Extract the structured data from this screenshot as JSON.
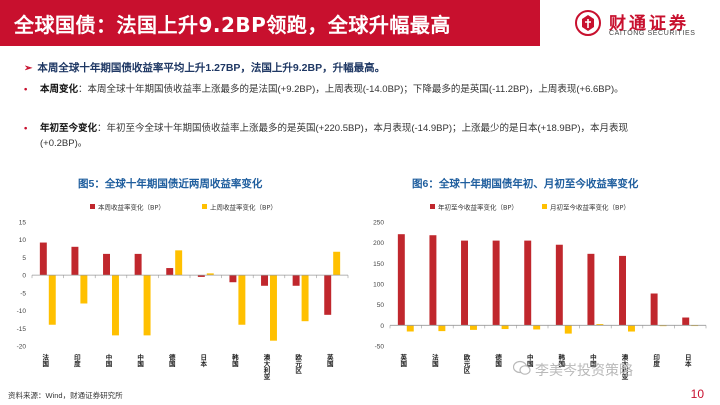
{
  "header": {
    "title": "全球国债：法国上升9.2BP领跑，全球升幅最高",
    "logo_cn": "财通证券",
    "logo_en": "CAITONG SECURITIES",
    "brand_color": "#c8102e"
  },
  "summary": {
    "arrow_icon": "right-arrow-icon",
    "text": "本周全球十年期国债收益率平均上升1.27BP，法国上升9.2BP，升幅最高。"
  },
  "bullets": [
    {
      "label": "本周变化",
      "text": "：本周全球十年期国债收益率上涨最多的是法国(+9.2BP)，上周表现(-14.0BP)；下降最多的是英国(-11.2BP)，上周表现(+6.6BP)。"
    },
    {
      "label": "年初至今变化",
      "text": "：年初至今全球十年期国债收益率上涨最多的是英国(+220.5BP)，本月表现(-14.9BP)；上涨最少的是日本(+18.9BP)，本月表现(+0.2BP)。"
    }
  ],
  "figures": {
    "fig5_title": "图5：全球十年期国债近两周收益率变化",
    "fig6_title": "图6：全球十年期国债年初、月初至今收益率变化"
  },
  "chart_data": [
    {
      "type": "bar",
      "categories": [
        "法国",
        "印度",
        "中国",
        "中国",
        "德国",
        "日本",
        "韩国",
        "澳大利亚",
        "欧元区",
        "英国"
      ],
      "series": [
        {
          "name": "本周收益率变化（BP）",
          "color": "#c0272d",
          "values": [
            9.2,
            8,
            6,
            6,
            2,
            -0.5,
            -2,
            -3,
            -3,
            -11.2
          ]
        },
        {
          "name": "上周收益率变化（BP）",
          "color": "#ffc000",
          "values": [
            -14.0,
            -8,
            -17,
            -17,
            7,
            0.5,
            -14,
            -18.5,
            -13,
            6.6
          ]
        }
      ],
      "ylim": [
        -20,
        15
      ],
      "yticks": [
        15,
        10,
        5,
        0,
        -5,
        -10,
        -15,
        -20
      ],
      "legend_position": "top"
    },
    {
      "type": "bar",
      "categories": [
        "英国",
        "法国",
        "欧元区",
        "德国",
        "中国",
        "韩国",
        "中国",
        "澳大利亚",
        "印度",
        "日本"
      ],
      "series": [
        {
          "name": "年初至今收益率变化（BP）",
          "color": "#c0272d",
          "values": [
            220.5,
            218,
            205,
            205,
            205,
            195,
            173,
            168,
            77,
            18.9
          ]
        },
        {
          "name": "月初至今收益率变化（BP）",
          "color": "#ffc000",
          "values": [
            -14.9,
            -14,
            -11,
            -9,
            -10,
            -20,
            3,
            -15,
            0,
            0.2
          ]
        }
      ],
      "ylim": [
        -50,
        250
      ],
      "yticks": [
        250,
        200,
        150,
        100,
        50,
        0,
        -50
      ],
      "legend_position": "top"
    }
  ],
  "footer": {
    "source": "资料来源：Wind，财通证券研究所",
    "page": "10",
    "watermark": "李美岑投资策略",
    "watermark_icon": "wechat-icon"
  }
}
